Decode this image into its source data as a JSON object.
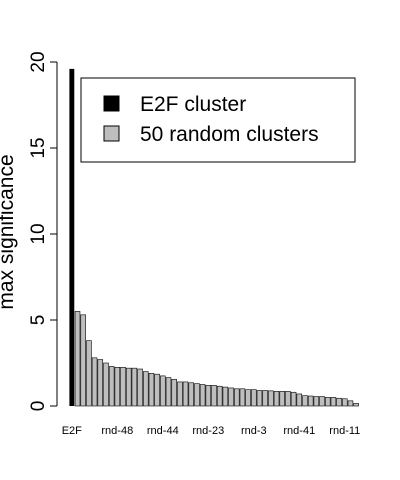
{
  "chart_data": {
    "type": "bar",
    "title": "",
    "xlabel": "",
    "ylabel": "max significance",
    "ylim": [
      0,
      20
    ],
    "yticks": [
      0,
      5,
      10,
      15,
      20
    ],
    "grid": false,
    "legend_position": "top-right",
    "xtick_labels": [
      "E2F",
      "rnd-48",
      "rnd-44",
      "rnd-23",
      "rnd-3",
      "rnd-41",
      "rnd-11"
    ],
    "series": [
      {
        "name": "E2F cluster",
        "color": "#000000",
        "values": [
          19.6
        ]
      },
      {
        "name": "50 random clusters",
        "color": "#bebebe",
        "values": [
          5.5,
          5.3,
          3.8,
          2.8,
          2.7,
          2.5,
          2.3,
          2.25,
          2.25,
          2.2,
          2.2,
          2.15,
          2.0,
          1.9,
          1.85,
          1.75,
          1.65,
          1.55,
          1.4,
          1.4,
          1.35,
          1.3,
          1.25,
          1.2,
          1.2,
          1.15,
          1.1,
          1.05,
          1.0,
          1.0,
          0.95,
          0.95,
          0.9,
          0.9,
          0.88,
          0.85,
          0.85,
          0.85,
          0.8,
          0.7,
          0.6,
          0.58,
          0.55,
          0.55,
          0.5,
          0.5,
          0.45,
          0.42,
          0.3,
          0.15
        ]
      }
    ]
  }
}
